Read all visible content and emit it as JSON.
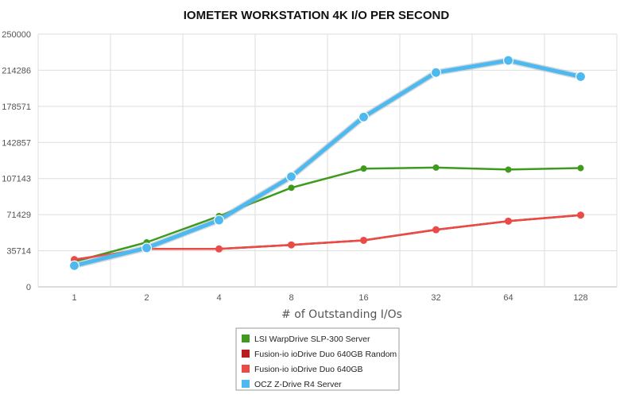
{
  "chart_data": {
    "type": "line",
    "title": "IOMETER WORKSTATION 4K I/O PER SECOND",
    "xlabel": "# of Outstanding I/Os",
    "ylabel": "",
    "categories": [
      "1",
      "2",
      "4",
      "8",
      "16",
      "32",
      "64",
      "128"
    ],
    "y_ticks": [
      "0",
      "35714",
      "71429",
      "107143",
      "142857",
      "178571",
      "214286",
      "250000"
    ],
    "ylim": [
      0,
      250000
    ],
    "grid": true,
    "legend_position": "bottom-center",
    "series": [
      {
        "name": "LSI WarpDrive SLP-300 Server",
        "color": "#3f9a1e",
        "values": [
          25000,
          44000,
          70000,
          98000,
          117000,
          118000,
          116000,
          117500
        ]
      },
      {
        "name": "Fusion-io ioDrive Duo 640GB Random",
        "color": "#b81d1d",
        "values": [
          27000,
          37500,
          37500,
          41500,
          46000,
          56500,
          65000,
          71000
        ]
      },
      {
        "name": "Fusion-io ioDrive Duo 640GB",
        "color": "#ea4b47",
        "values": [
          27000,
          37500,
          37500,
          41500,
          46000,
          56500,
          65000,
          71000
        ]
      },
      {
        "name": "OCZ Z-Drive R4 Server",
        "color": "#4db9ef",
        "values": [
          21000,
          38500,
          66000,
          109000,
          168000,
          212000,
          224000,
          208000
        ]
      }
    ]
  }
}
